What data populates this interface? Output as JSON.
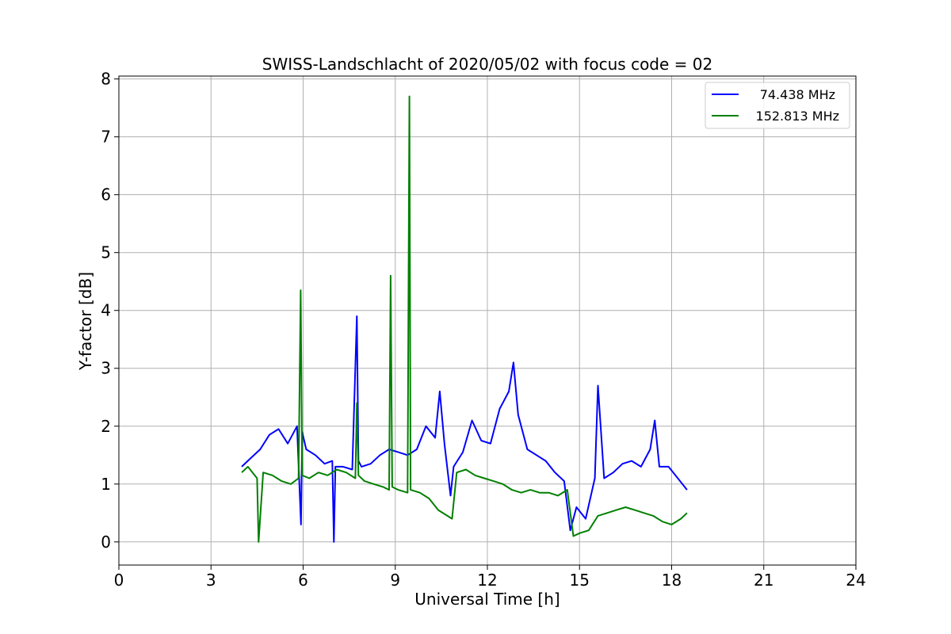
{
  "chart_data": {
    "type": "line",
    "title": "SWISS-Landschlacht of 2020/05/02 with focus code = 02",
    "xlabel": "Universal Time [h]",
    "ylabel": "Y-factor [dB]",
    "xlim": [
      0,
      24
    ],
    "ylim": [
      -0.4,
      8.05
    ],
    "xticks": [
      0,
      3,
      6,
      9,
      12,
      15,
      18,
      21,
      24
    ],
    "yticks": [
      0,
      1,
      2,
      3,
      4,
      5,
      6,
      7,
      8
    ],
    "grid": true,
    "legend_position": "top-right",
    "series": [
      {
        "name": "74.438 MHz",
        "color": "#0000ff",
        "x": [
          4.0,
          4.3,
          4.6,
          4.9,
          5.2,
          5.5,
          5.8,
          5.93,
          5.97,
          6.1,
          6.4,
          6.7,
          6.95,
          7.0,
          7.05,
          7.3,
          7.6,
          7.75,
          7.8,
          7.9,
          8.2,
          8.5,
          8.8,
          9.1,
          9.4,
          9.7,
          10.0,
          10.3,
          10.45,
          10.6,
          10.8,
          10.9,
          11.2,
          11.5,
          11.8,
          12.1,
          12.4,
          12.7,
          12.85,
          13.0,
          13.3,
          13.6,
          13.9,
          14.2,
          14.5,
          14.7,
          14.9,
          15.2,
          15.5,
          15.6,
          15.8,
          16.1,
          16.4,
          16.7,
          17.0,
          17.3,
          17.45,
          17.6,
          17.9,
          18.2,
          18.5
        ],
        "y": [
          1.3,
          1.45,
          1.6,
          1.85,
          1.95,
          1.7,
          2.0,
          0.3,
          1.9,
          1.6,
          1.5,
          1.35,
          1.4,
          0.0,
          1.3,
          1.3,
          1.25,
          3.9,
          1.4,
          1.3,
          1.35,
          1.5,
          1.6,
          1.55,
          1.5,
          1.6,
          2.0,
          1.8,
          2.6,
          1.7,
          0.8,
          1.3,
          1.55,
          2.1,
          1.75,
          1.7,
          2.3,
          2.6,
          3.1,
          2.2,
          1.6,
          1.5,
          1.4,
          1.2,
          1.05,
          0.2,
          0.6,
          0.4,
          1.1,
          2.7,
          1.1,
          1.2,
          1.35,
          1.4,
          1.3,
          1.6,
          2.1,
          1.3,
          1.3,
          1.1,
          0.9
        ]
      },
      {
        "name": "152.813 MHz",
        "color": "#008000",
        "x": [
          4.0,
          4.2,
          4.5,
          4.55,
          4.7,
          5.0,
          5.3,
          5.6,
          5.85,
          5.92,
          5.97,
          6.2,
          6.5,
          6.8,
          7.1,
          7.4,
          7.7,
          7.75,
          7.8,
          8.0,
          8.3,
          8.6,
          8.8,
          8.85,
          8.9,
          9.1,
          9.4,
          9.46,
          9.5,
          9.8,
          10.1,
          10.4,
          10.7,
          10.85,
          11.0,
          11.3,
          11.6,
          11.9,
          12.2,
          12.5,
          12.8,
          13.1,
          13.4,
          13.7,
          14.0,
          14.3,
          14.6,
          14.8,
          15.0,
          15.3,
          15.6,
          15.9,
          16.2,
          16.5,
          16.8,
          17.1,
          17.4,
          17.7,
          18.0,
          18.3,
          18.5
        ],
        "y": [
          1.2,
          1.3,
          1.1,
          0.0,
          1.2,
          1.15,
          1.05,
          1.0,
          1.1,
          4.35,
          1.15,
          1.1,
          1.2,
          1.15,
          1.25,
          1.2,
          1.1,
          2.4,
          1.15,
          1.05,
          1.0,
          0.95,
          0.9,
          4.6,
          0.95,
          0.9,
          0.85,
          7.7,
          0.9,
          0.85,
          0.75,
          0.55,
          0.45,
          0.4,
          1.2,
          1.25,
          1.15,
          1.1,
          1.05,
          1.0,
          0.9,
          0.85,
          0.9,
          0.85,
          0.85,
          0.8,
          0.9,
          0.1,
          0.15,
          0.2,
          0.45,
          0.5,
          0.55,
          0.6,
          0.55,
          0.5,
          0.45,
          0.35,
          0.3,
          0.4,
          0.5
        ]
      }
    ]
  }
}
